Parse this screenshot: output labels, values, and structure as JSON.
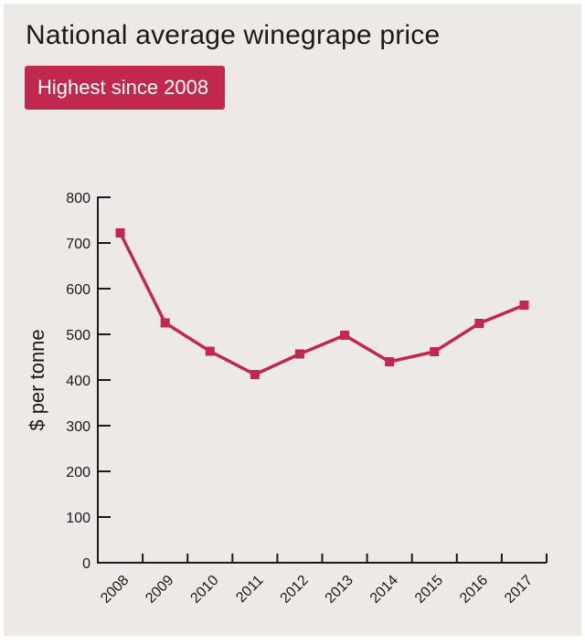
{
  "title": "National average winegrape price",
  "badge": "Highest since 2008",
  "colors": {
    "background": "#ece9e6",
    "line": "#c0284d",
    "axis": "#1a1a1a",
    "badge": "#c0284d"
  },
  "chart_data": {
    "type": "line",
    "title": "National average winegrape price",
    "xlabel": "",
    "ylabel": "$ per tonne",
    "categories": [
      "2008",
      "2009",
      "2010",
      "2011",
      "2012",
      "2013",
      "2014",
      "2015",
      "2016",
      "2017"
    ],
    "series": [
      {
        "values": [
          722,
          525,
          463,
          412,
          457,
          498,
          440,
          462,
          524,
          564
        ]
      }
    ],
    "y_ticks": [
      0,
      100,
      200,
      300,
      400,
      500,
      600,
      700,
      800
    ],
    "ylim": [
      0,
      800
    ],
    "grid": false,
    "legend": "none"
  }
}
